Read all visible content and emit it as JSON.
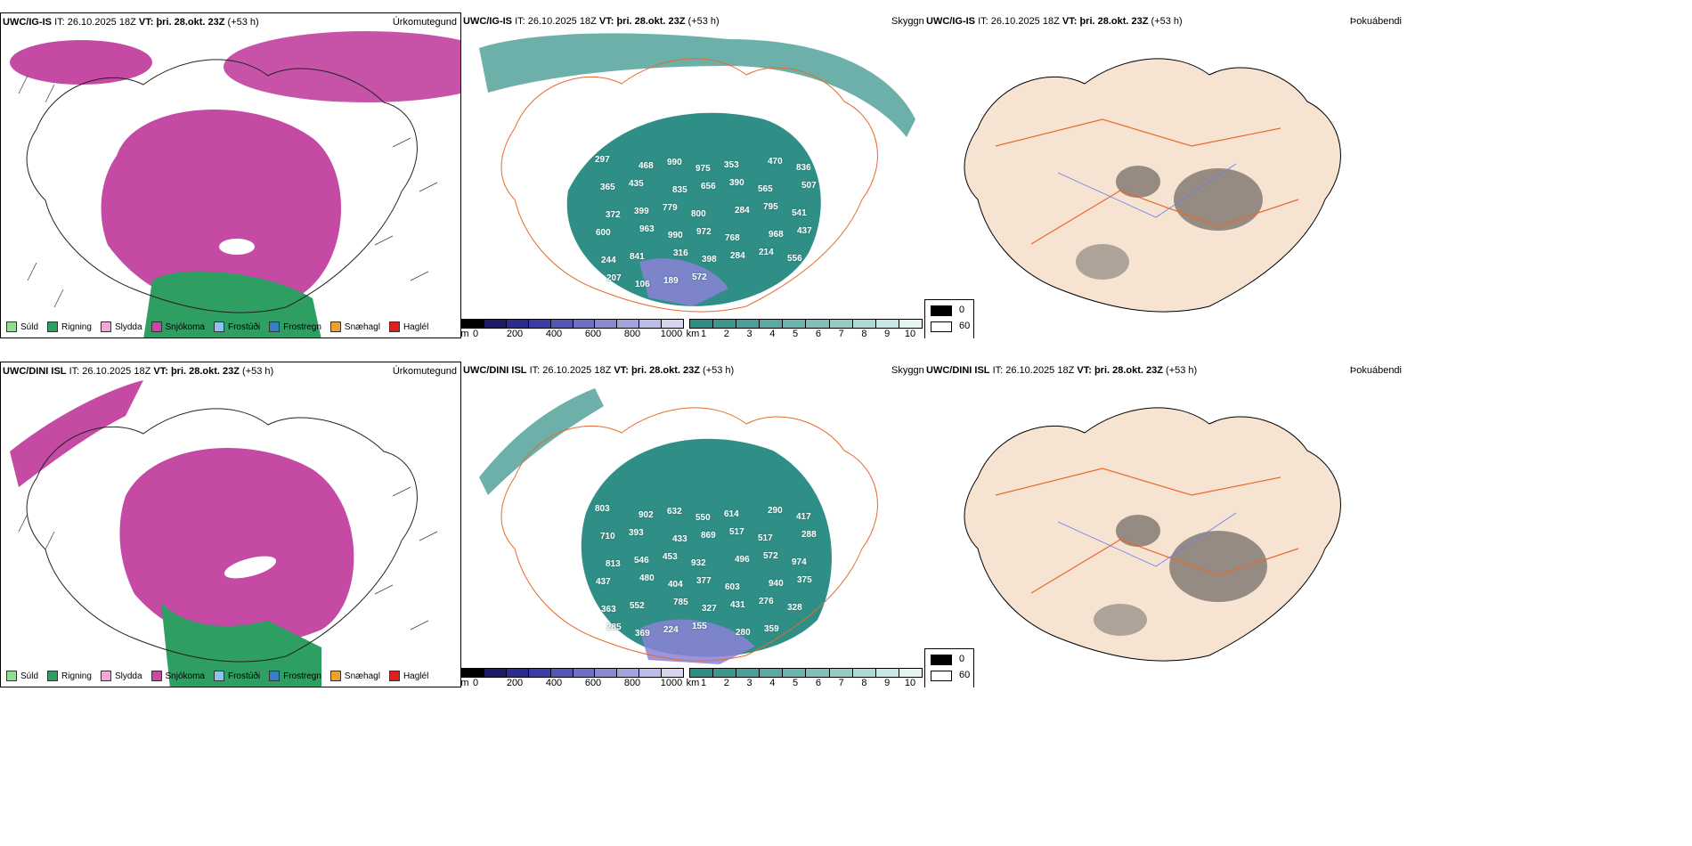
{
  "rows": [
    {
      "model": "UWC/IG-IS",
      "it_label": "IT:",
      "it": "26.10.2025 18Z",
      "vt_label": "VT:",
      "vt": "þri. 28.okt. 23Z",
      "lead": "(+53 h)",
      "titles": [
        "Úrkomutegund",
        "Skyggni",
        "Þokuábendi"
      ],
      "labels": [
        "297",
        "468",
        "990",
        "975",
        "353",
        "470",
        "836",
        "365",
        "435",
        "835",
        "656",
        "390",
        "565",
        "507",
        "372",
        "399",
        "779",
        "800",
        "284",
        "795",
        "541",
        "600",
        "963",
        "990",
        "972",
        "768",
        "968",
        "437",
        "244",
        "841",
        "316",
        "398",
        "284",
        "214",
        "556",
        "207",
        "106",
        "189",
        "572"
      ]
    },
    {
      "model": "UWC/DINI ISL",
      "it_label": "IT:",
      "it": "26.10.2025 18Z",
      "vt_label": "VT:",
      "vt": "þri. 28.okt. 23Z",
      "lead": "(+53 h)",
      "titles": [
        "Úrkomutegund",
        "Skyggni",
        "Þokuábendi"
      ],
      "labels": [
        "803",
        "902",
        "632",
        "550",
        "614",
        "290",
        "417",
        "710",
        "393",
        "433",
        "869",
        "517",
        "517",
        "288",
        "813",
        "546",
        "453",
        "932",
        "496",
        "572",
        "974",
        "437",
        "480",
        "404",
        "377",
        "603",
        "940",
        "375",
        "363",
        "552",
        "785",
        "327",
        "431",
        "276",
        "328",
        "285",
        "369",
        "224",
        "155",
        "280",
        "359"
      ]
    }
  ],
  "precip_legend": [
    {
      "label": "Súld",
      "color": "#8ee08e"
    },
    {
      "label": "Rigning",
      "color": "#2e9e63"
    },
    {
      "label": "Slydda",
      "color": "#f0a8d8"
    },
    {
      "label": "Snjókoma",
      "color": "#c44aa3"
    },
    {
      "label": "Frostúði",
      "color": "#8fc3ef"
    },
    {
      "label": "Frostregn",
      "color": "#3a7fc4"
    },
    {
      "label": "Snæhagl",
      "color": "#f0a030"
    },
    {
      "label": "Haglél",
      "color": "#e02020"
    }
  ],
  "cbar_m": {
    "unit": "m",
    "ticks": [
      "0",
      "200",
      "400",
      "600",
      "800",
      "1000"
    ]
  },
  "cbar_km": {
    "unit": "km",
    "ticks": [
      "1",
      "2",
      "3",
      "4",
      "5",
      "6",
      "7",
      "8",
      "9",
      "10"
    ]
  },
  "fog_legend": {
    "top": "0",
    "bottom": "60"
  },
  "colors": {
    "snow": "#c44aa3",
    "rain": "#2e9e63",
    "sleet": "#f0a8d8",
    "teal": "#2f8f86",
    "land": "#f6e3d2",
    "roads": "#e86a2a",
    "rivers": "#6a7ff0"
  }
}
